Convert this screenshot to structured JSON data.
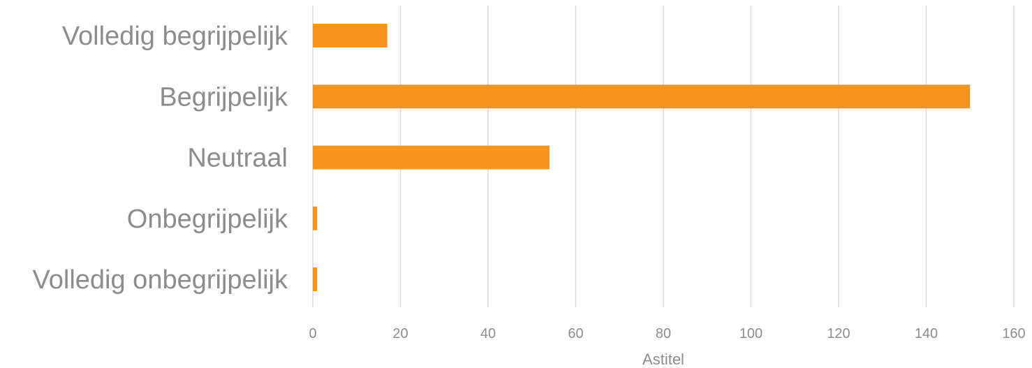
{
  "chart_data": {
    "type": "bar",
    "orientation": "horizontal",
    "categories": [
      "Volledig begrijpelijk",
      "Begrijpelijk",
      "Neutraal",
      "Onbegrijpelijk",
      "Volledig onbegrijpelijk"
    ],
    "values": [
      17,
      150,
      54,
      1,
      1
    ],
    "xlabel": "Astitel",
    "ylabel": "",
    "xlim": [
      0,
      160
    ],
    "xticks": [
      "0",
      "20",
      "40",
      "60",
      "80",
      "100",
      "120",
      "140",
      "160"
    ],
    "grid": "vertical",
    "legend": "none",
    "bar_color": "#f7941d"
  }
}
